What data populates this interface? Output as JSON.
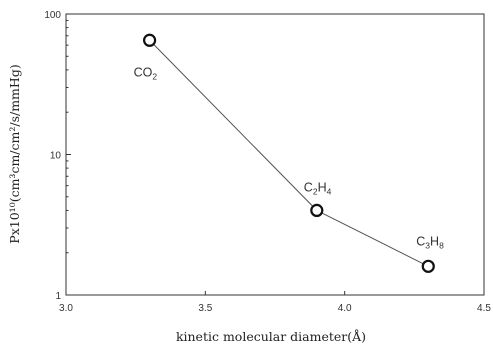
{
  "chart_data": {
    "type": "line",
    "title": "",
    "xlabel": "kinetic molecular diameter(Å)",
    "ylabel": "Px10¹⁰(cm³cm/cm²/s/mmHg)",
    "xlim": [
      3.0,
      4.5
    ],
    "ylim": [
      1,
      100
    ],
    "yscale": "log",
    "grid": false,
    "legend": "none",
    "xticks": [
      "3.0",
      "3.5",
      "4.0",
      "4.5"
    ],
    "yticks": [
      {
        "value": 1,
        "label": "1"
      },
      {
        "value": 10,
        "label": "10"
      },
      {
        "value": 100,
        "label": "100"
      }
    ],
    "points": [
      {
        "x": 3.3,
        "y": 65,
        "label": {
          "base": "CO",
          "sub": "2",
          "mid": "",
          "sub2": ""
        }
      },
      {
        "x": 3.9,
        "y": 4.0,
        "label": {
          "base": "C",
          "sub": "2",
          "mid": "H",
          "sub2": "4"
        }
      },
      {
        "x": 4.3,
        "y": 1.6,
        "label": {
          "base": "C",
          "sub": "3",
          "mid": "H",
          "sub2": "8"
        }
      }
    ],
    "line_color": "#555555",
    "marker_color": "#111111"
  }
}
